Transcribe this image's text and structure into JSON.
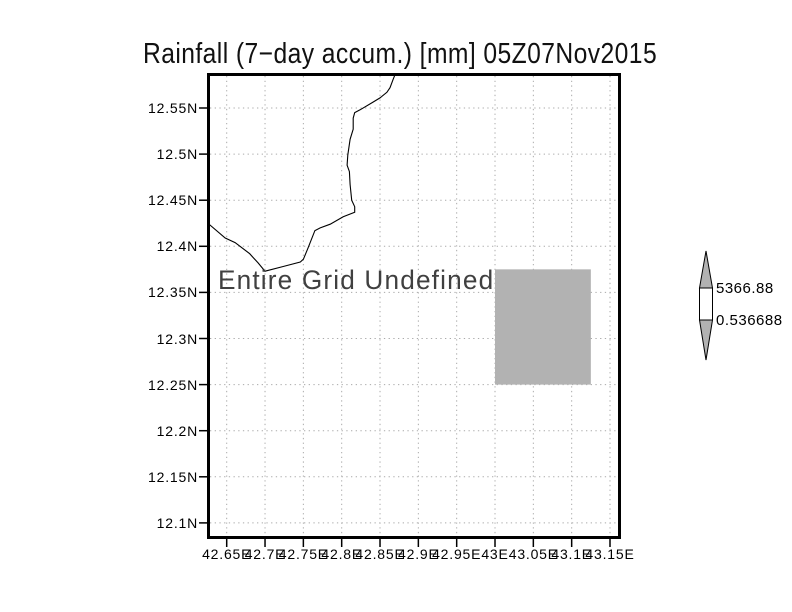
{
  "title": "Rainfall (7−day accum.) [mm] 05Z07Nov2015",
  "map": {
    "overlay_text": "Entire Grid Undefined"
  },
  "colorbar": {
    "top_label": "5366.88",
    "bottom_label": "0.536688"
  },
  "colors": {
    "background": "#ffffff",
    "frame": "#000000",
    "grid": "#aaaaaa",
    "coastline": "#000000",
    "undefined_fill": "#b2b2b2",
    "colorbar_arrow_fill": "#b2b2b2",
    "colorbar_body_fill": "#ffffff",
    "overlay_text": "#404040",
    "label_text": "#000000"
  },
  "chart_data": {
    "type": "heatmap",
    "subtype": "grads-map-plot",
    "title": "Rainfall (7−day accum.) [mm] 05Z07Nov2015",
    "status_annotation": "Entire Grid Undefined",
    "grid": "dotted",
    "legend_position": "right-colorbar",
    "x_axis": {
      "tick_labels": [
        "42.65E",
        "42.7E",
        "42.75E",
        "42.8E",
        "42.85E",
        "42.9E",
        "42.95E",
        "43E",
        "43.05E",
        "43.1E",
        "43.15E"
      ],
      "tick_values": [
        42.65,
        42.7,
        42.75,
        42.8,
        42.85,
        42.9,
        42.95,
        43.0,
        43.05,
        43.1,
        43.15
      ],
      "range": [
        42.628,
        43.16
      ]
    },
    "y_axis": {
      "tick_labels": [
        "12.55N",
        "12.5N",
        "12.45N",
        "12.4N",
        "12.35N",
        "12.3N",
        "12.25N",
        "12.2N",
        "12.15N",
        "12.1N"
      ],
      "tick_values": [
        12.55,
        12.5,
        12.45,
        12.4,
        12.35,
        12.3,
        12.25,
        12.2,
        12.15,
        12.1
      ],
      "range": [
        12.083,
        12.588
      ]
    },
    "undefined_region_deg": {
      "lon": [
        43.0,
        43.125
      ],
      "lat": [
        12.25,
        12.375
      ]
    },
    "colorbar": {
      "max_label": "5366.88",
      "min_label": "0.536688",
      "values": [
        0.536688,
        5366.88
      ]
    },
    "coastline_deg": [
      [
        42.871,
        12.589
      ],
      [
        42.867,
        12.581
      ],
      [
        42.863,
        12.572
      ],
      [
        42.859,
        12.567
      ],
      [
        42.85,
        12.561
      ],
      [
        42.84,
        12.556
      ],
      [
        42.824,
        12.548
      ],
      [
        42.817,
        12.545
      ],
      [
        42.815,
        12.539
      ],
      [
        42.815,
        12.527
      ],
      [
        42.811,
        12.516
      ],
      [
        42.808,
        12.499
      ],
      [
        42.807,
        12.488
      ],
      [
        42.81,
        12.481
      ],
      [
        42.811,
        12.467
      ],
      [
        42.813,
        12.45
      ],
      [
        42.817,
        12.443
      ],
      [
        42.817,
        12.437
      ],
      [
        42.802,
        12.432
      ],
      [
        42.785,
        12.424
      ],
      [
        42.772,
        12.42
      ],
      [
        42.765,
        12.417
      ],
      [
        42.756,
        12.398
      ],
      [
        42.75,
        12.386
      ],
      [
        42.746,
        12.383
      ],
      [
        42.723,
        12.378
      ],
      [
        42.7,
        12.373
      ],
      [
        42.691,
        12.382
      ],
      [
        42.68,
        12.392
      ],
      [
        42.661,
        12.404
      ],
      [
        42.648,
        12.409
      ],
      [
        42.624,
        12.426
      ]
    ]
  }
}
